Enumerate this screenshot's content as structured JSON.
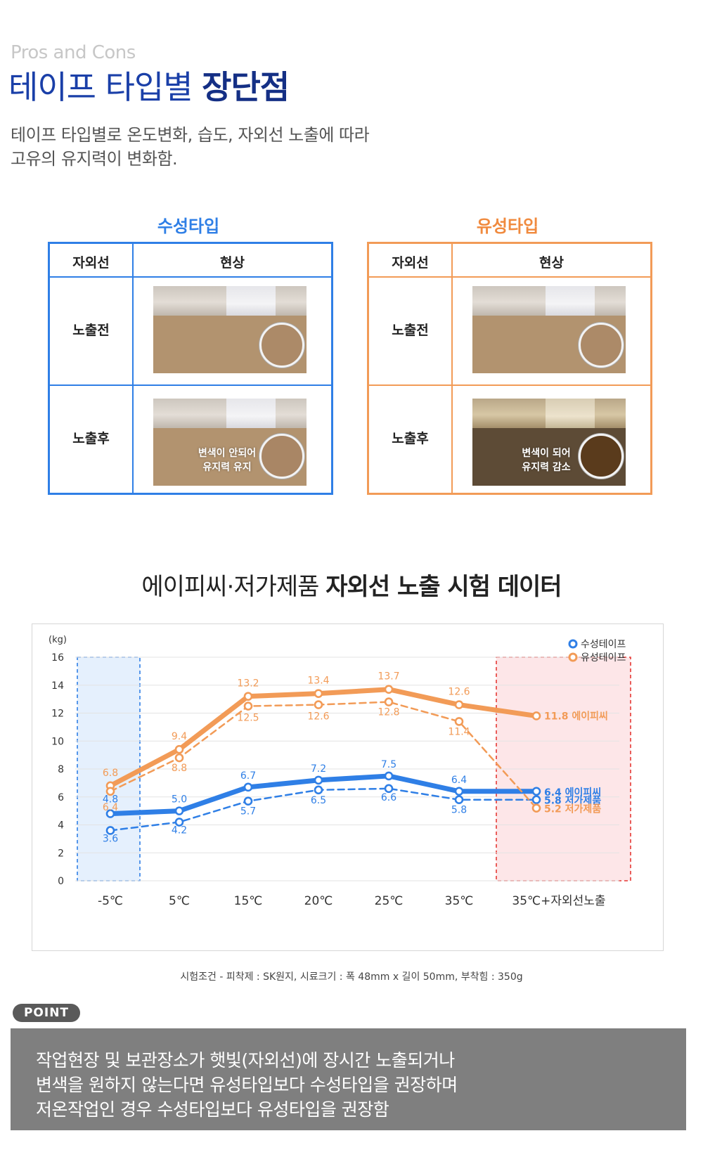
{
  "header": {
    "kicker": "Pros and Cons",
    "title_light": "테이프 타입별 ",
    "title_bold": "장단점",
    "desc_line1": "테이프 타입별로 온도변화, 습도, 자외선 노출에 따라",
    "desc_line2": "고유의 유지력이 변화함."
  },
  "comparison": {
    "water": {
      "title": "수성타입",
      "col_uv": "자외선",
      "col_phenomenon": "현상",
      "row_before": "노출전",
      "row_after": "노출후",
      "after_caption_1": "변색이 안되어",
      "after_caption_2": "유지력 유지"
    },
    "oil": {
      "title": "유성타입",
      "col_uv": "자외선",
      "col_phenomenon": "현상",
      "row_before": "노출전",
      "row_after": "노출후",
      "after_caption_1": "변색이 되어",
      "after_caption_2": "유지력 감소"
    }
  },
  "chart_title_light": "에이피씨·저가제품 ",
  "chart_title_bold": "자외선 노출 시험 데이터",
  "chart_data": {
    "type": "line",
    "ylabel": "(kg)",
    "ylim": [
      0,
      16
    ],
    "yticks": [
      "0",
      "2",
      "4",
      "6",
      "8",
      "10",
      "12",
      "14",
      "16"
    ],
    "categories": [
      "-5℃",
      "5℃",
      "15℃",
      "20℃",
      "25℃",
      "35℃",
      "35℃+자외선노출"
    ],
    "legend": [
      "수성테이프",
      "유성테이프"
    ],
    "legend_position": "top-right",
    "grid": true,
    "series": [
      {
        "name": "수성테이프",
        "variant": "에이피씨",
        "style": "solid",
        "color": "#2f7fe6",
        "values": [
          4.8,
          5.0,
          6.7,
          7.2,
          7.5,
          6.4,
          6.4
        ],
        "labels": [
          "4.8",
          "5.0",
          "6.7",
          "7.2",
          "7.5",
          "6.4",
          "6.4 에이피씨"
        ]
      },
      {
        "name": "수성테이프",
        "variant": "저가제품",
        "style": "dashed",
        "color": "#2f7fe6",
        "values": [
          3.6,
          4.2,
          5.7,
          6.5,
          6.6,
          5.8,
          5.8
        ],
        "labels": [
          "3.6",
          "4.2",
          "5.7",
          "6.5",
          "6.6",
          "5.8",
          "5.8 저가제품"
        ]
      },
      {
        "name": "유성테이프",
        "variant": "에이피씨",
        "style": "solid",
        "color": "#f29b57",
        "values": [
          6.8,
          9.4,
          13.2,
          13.4,
          13.7,
          12.6,
          11.8
        ],
        "labels": [
          "6.8",
          "9.4",
          "13.2",
          "13.4",
          "13.7",
          "12.6",
          "11.8 에이피씨"
        ]
      },
      {
        "name": "유성테이프",
        "variant": "저가제품",
        "style": "dashed",
        "color": "#f29b57",
        "values": [
          6.4,
          8.8,
          12.5,
          12.6,
          12.8,
          11.4,
          5.2
        ],
        "labels": [
          "6.4",
          "8.8",
          "12.5",
          "12.6",
          "12.8",
          "11.4",
          "5.2 저가제품"
        ]
      }
    ],
    "highlight_regions": [
      {
        "category": "-5℃",
        "color": "#2f7fe6"
      },
      {
        "category": "35℃+자외선노출",
        "color": "#e53935"
      }
    ]
  },
  "caption": "시험조건 - 피착제 : SK원지, 시료크기 : 폭 48mm x 길이 50mm, 부착힘 : 350g",
  "point": {
    "badge": "POINT",
    "line1": "작업현장 및 보관장소가 햇빛(자외선)에 장시간 노출되거나",
    "line2": "변색을 원하지 않는다면 유성타입보다 수성타입을 권장하며",
    "line3": "저온작업인 경우 수성타입보다 유성타입을 권장함"
  }
}
